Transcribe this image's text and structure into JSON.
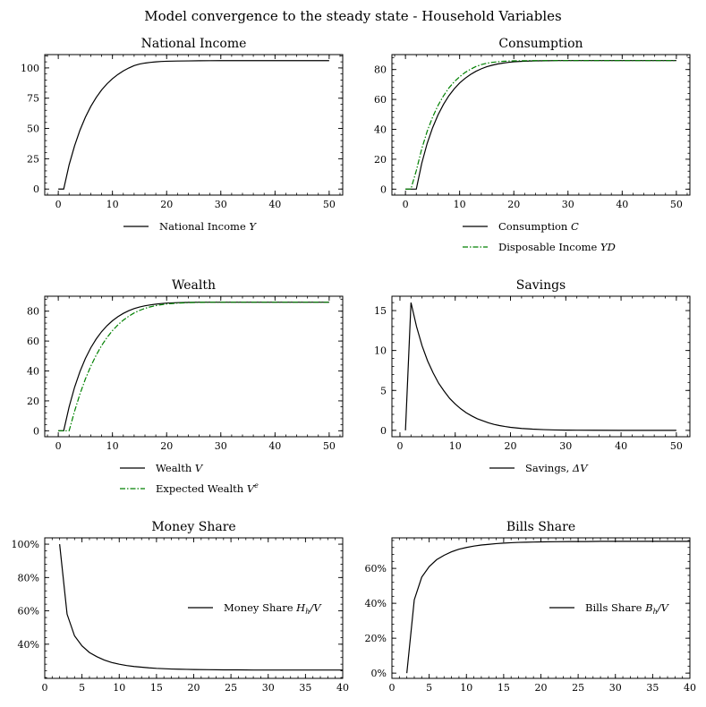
{
  "suptitle": "Model convergence to the steady state - Household Variables",
  "chart_data": [
    {
      "type": "line",
      "title": "National Income",
      "xlim": [
        -2.5,
        52.5
      ],
      "ylim": [
        -5,
        111
      ],
      "xticks": [
        0,
        10,
        20,
        30,
        40,
        50
      ],
      "xtick_labels": [
        "0",
        "10",
        "20",
        "30",
        "40",
        "50"
      ],
      "yticks": [
        0,
        25,
        50,
        75,
        100
      ],
      "ytick_labels": [
        "0",
        "25",
        "50",
        "75",
        "100"
      ],
      "legend": "below",
      "series": [
        {
          "name": "National Income Y",
          "label_text": "National Income",
          "label_var": "Y",
          "color": "#000000",
          "style": "solid",
          "x": [
            0,
            1,
            2,
            3,
            4,
            5,
            6,
            7,
            8,
            9,
            10,
            11,
            12,
            13,
            14,
            15,
            16,
            17,
            18,
            19,
            20,
            22,
            24,
            26,
            28,
            30,
            35,
            40,
            45,
            50
          ],
          "y": [
            0,
            0,
            20,
            35.6,
            48.6,
            59.3,
            68.2,
            75.6,
            81.8,
            86.9,
            91.1,
            94.6,
            97.5,
            99.9,
            101.9,
            103.2,
            104.0,
            104.6,
            105.0,
            105.3,
            105.5,
            105.7,
            105.8,
            105.9,
            105.95,
            106,
            106,
            106,
            106,
            106
          ]
        }
      ]
    },
    {
      "type": "line",
      "title": "Consumption",
      "xlim": [
        -2.5,
        52.5
      ],
      "ylim": [
        -4,
        90
      ],
      "xticks": [
        0,
        10,
        20,
        30,
        40,
        50
      ],
      "xtick_labels": [
        "0",
        "10",
        "20",
        "30",
        "40",
        "50"
      ],
      "yticks": [
        0,
        20,
        40,
        60,
        80
      ],
      "ytick_labels": [
        "0",
        "20",
        "40",
        "60",
        "80"
      ],
      "legend": "below",
      "series": [
        {
          "name": "Consumption C",
          "label_text": "Consumption",
          "label_var": "C",
          "color": "#000000",
          "style": "solid",
          "x": [
            0,
            1,
            2,
            3,
            4,
            5,
            6,
            7,
            8,
            9,
            10,
            11,
            12,
            13,
            14,
            15,
            16,
            17,
            18,
            19,
            20,
            22,
            24,
            26,
            28,
            30,
            35,
            40,
            45,
            50
          ],
          "y": [
            0,
            0,
            0,
            17.2,
            30.5,
            41.0,
            49.6,
            56.6,
            62.4,
            67.1,
            71.0,
            74.1,
            76.7,
            78.8,
            80.5,
            81.9,
            82.9,
            83.7,
            84.3,
            84.8,
            85.2,
            85.6,
            85.8,
            85.9,
            86.0,
            86,
            86,
            86,
            86,
            86
          ]
        },
        {
          "name": "Disposable Income YD",
          "label_text": "Disposable Income",
          "label_var": "YD",
          "color": "#008000",
          "style": "dashdot",
          "x": [
            0,
            1,
            2,
            3,
            4,
            5,
            6,
            7,
            8,
            9,
            10,
            11,
            12,
            13,
            14,
            15,
            16,
            17,
            18,
            19,
            20,
            22,
            24,
            26,
            28,
            30,
            35,
            40,
            45,
            50
          ],
          "y": [
            0,
            0,
            12.4,
            26.9,
            38.6,
            48.1,
            55.9,
            62.3,
            67.6,
            71.8,
            75.2,
            78.0,
            80.2,
            82.0,
            83.3,
            84.2,
            84.8,
            85.2,
            85.5,
            85.7,
            85.8,
            85.9,
            86.0,
            86,
            86,
            86,
            86,
            86,
            86,
            86
          ]
        }
      ]
    },
    {
      "type": "line",
      "title": "Wealth",
      "xlim": [
        -2.5,
        52.5
      ],
      "ylim": [
        -4,
        90
      ],
      "xticks": [
        0,
        10,
        20,
        30,
        40,
        50
      ],
      "xtick_labels": [
        "0",
        "10",
        "20",
        "30",
        "40",
        "50"
      ],
      "yticks": [
        0,
        20,
        40,
        60,
        80
      ],
      "ytick_labels": [
        "0",
        "20",
        "40",
        "60",
        "80"
      ],
      "legend": "below",
      "series": [
        {
          "name": "Wealth V",
          "label_text": "Wealth",
          "label_var": "V",
          "color": "#000000",
          "style": "solid",
          "x": [
            0,
            1,
            2,
            3,
            4,
            5,
            6,
            7,
            8,
            9,
            10,
            11,
            12,
            13,
            14,
            15,
            16,
            17,
            18,
            19,
            20,
            22,
            24,
            26,
            28,
            30,
            35,
            40,
            45,
            50
          ],
          "y": [
            0,
            0,
            16.0,
            29.0,
            39.6,
            48.3,
            55.5,
            61.4,
            66.3,
            70.3,
            73.6,
            76.3,
            78.5,
            80.3,
            81.7,
            82.8,
            83.6,
            84.2,
            84.7,
            85.1,
            85.4,
            85.7,
            85.9,
            86.0,
            86,
            86,
            86,
            86,
            86,
            86
          ]
        },
        {
          "name": "Expected Wealth V^e",
          "label_text": "Expected Wealth",
          "label_var": "V",
          "label_sup": "e",
          "color": "#008000",
          "style": "dashdot",
          "x": [
            0,
            1,
            2,
            3,
            4,
            5,
            6,
            7,
            8,
            9,
            10,
            11,
            12,
            13,
            14,
            15,
            16,
            17,
            18,
            19,
            20,
            22,
            24,
            26,
            28,
            30,
            35,
            40,
            45,
            50
          ],
          "y": [
            0,
            0,
            0,
            13.0,
            24.6,
            34.6,
            43.2,
            50.6,
            57.0,
            62.4,
            67.0,
            70.8,
            74.0,
            76.6,
            78.8,
            80.5,
            81.9,
            82.9,
            83.7,
            84.3,
            84.8,
            85.4,
            85.7,
            85.9,
            86.0,
            86,
            86,
            86,
            86,
            86
          ]
        }
      ]
    },
    {
      "type": "line",
      "title": "Savings",
      "xlim": [
        -1.45,
        52.45
      ],
      "ylim": [
        -0.8,
        16.8
      ],
      "xticks": [
        0,
        10,
        20,
        30,
        40,
        50
      ],
      "xtick_labels": [
        "0",
        "10",
        "20",
        "30",
        "40",
        "50"
      ],
      "yticks": [
        0,
        5,
        10,
        15
      ],
      "ytick_labels": [
        "0",
        "5",
        "10",
        "15"
      ],
      "legend": "below",
      "series": [
        {
          "name": "Savings, ΔV",
          "label_text": "Savings,",
          "label_var": "ΔV",
          "color": "#000000",
          "style": "solid",
          "x": [
            1,
            2,
            3,
            4,
            5,
            6,
            7,
            8,
            9,
            10,
            11,
            12,
            13,
            14,
            15,
            16,
            17,
            18,
            19,
            20,
            22,
            24,
            26,
            28,
            30,
            32,
            35,
            40,
            45,
            50
          ],
          "y": [
            0,
            16.0,
            13.0,
            10.6,
            8.7,
            7.2,
            5.9,
            4.9,
            4.0,
            3.3,
            2.7,
            2.2,
            1.8,
            1.45,
            1.2,
            0.95,
            0.75,
            0.6,
            0.48,
            0.38,
            0.24,
            0.15,
            0.09,
            0.05,
            0.03,
            0.02,
            0.01,
            0,
            0,
            0
          ]
        }
      ]
    },
    {
      "type": "line",
      "title": "Money Share",
      "xlim": [
        0,
        40
      ],
      "ylim": [
        0.195,
        1.038
      ],
      "xticks": [
        0,
        5,
        10,
        15,
        20,
        25,
        30,
        35,
        40
      ],
      "xtick_labels": [
        "0",
        "5",
        "10",
        "15",
        "20",
        "25",
        "30",
        "35",
        "40"
      ],
      "yticks": [
        0.4,
        0.6,
        0.8,
        1.0
      ],
      "ytick_labels": [
        "40%",
        "60%",
        "80%",
        "100%"
      ],
      "legend": "right",
      "series": [
        {
          "name": "Money Share H_h/V",
          "label_text": "Money Share",
          "label_var": "H",
          "label_sub": "h",
          "label_tail": "/V",
          "color": "#000000",
          "style": "solid",
          "x": [
            2,
            3,
            4,
            5,
            6,
            7,
            8,
            9,
            10,
            11,
            12,
            13,
            14,
            15,
            16,
            17,
            18,
            19,
            20,
            22,
            24,
            26,
            28,
            30,
            32,
            35,
            38,
            40
          ],
          "y": [
            1.0,
            0.58,
            0.45,
            0.39,
            0.35,
            0.325,
            0.305,
            0.29,
            0.28,
            0.272,
            0.266,
            0.262,
            0.258,
            0.255,
            0.253,
            0.251,
            0.25,
            0.249,
            0.248,
            0.247,
            0.246,
            0.246,
            0.245,
            0.245,
            0.245,
            0.245,
            0.245,
            0.245
          ]
        }
      ]
    },
    {
      "type": "line",
      "title": "Bills Share",
      "xlim": [
        0,
        40
      ],
      "ylim": [
        -0.03,
        0.775
      ],
      "xticks": [
        0,
        5,
        10,
        15,
        20,
        25,
        30,
        35,
        40
      ],
      "xtick_labels": [
        "0",
        "5",
        "10",
        "15",
        "20",
        "25",
        "30",
        "35",
        "40"
      ],
      "yticks": [
        0.0,
        0.2,
        0.4,
        0.6
      ],
      "ytick_labels": [
        "0%",
        "20%",
        "40%",
        "60%"
      ],
      "legend": "right",
      "series": [
        {
          "name": "Bills Share B_h/V",
          "label_text": "Bills Share",
          "label_var": "B",
          "label_sub": "h",
          "label_tail": "/V",
          "color": "#000000",
          "style": "solid",
          "x": [
            2,
            3,
            4,
            5,
            6,
            7,
            8,
            9,
            10,
            11,
            12,
            13,
            14,
            15,
            16,
            17,
            18,
            19,
            20,
            22,
            24,
            26,
            28,
            30,
            32,
            35,
            38,
            40
          ],
          "y": [
            0.0,
            0.42,
            0.55,
            0.61,
            0.65,
            0.675,
            0.695,
            0.71,
            0.72,
            0.728,
            0.734,
            0.738,
            0.742,
            0.745,
            0.747,
            0.749,
            0.75,
            0.751,
            0.752,
            0.753,
            0.754,
            0.754,
            0.755,
            0.755,
            0.755,
            0.755,
            0.755,
            0.755
          ]
        }
      ]
    }
  ]
}
